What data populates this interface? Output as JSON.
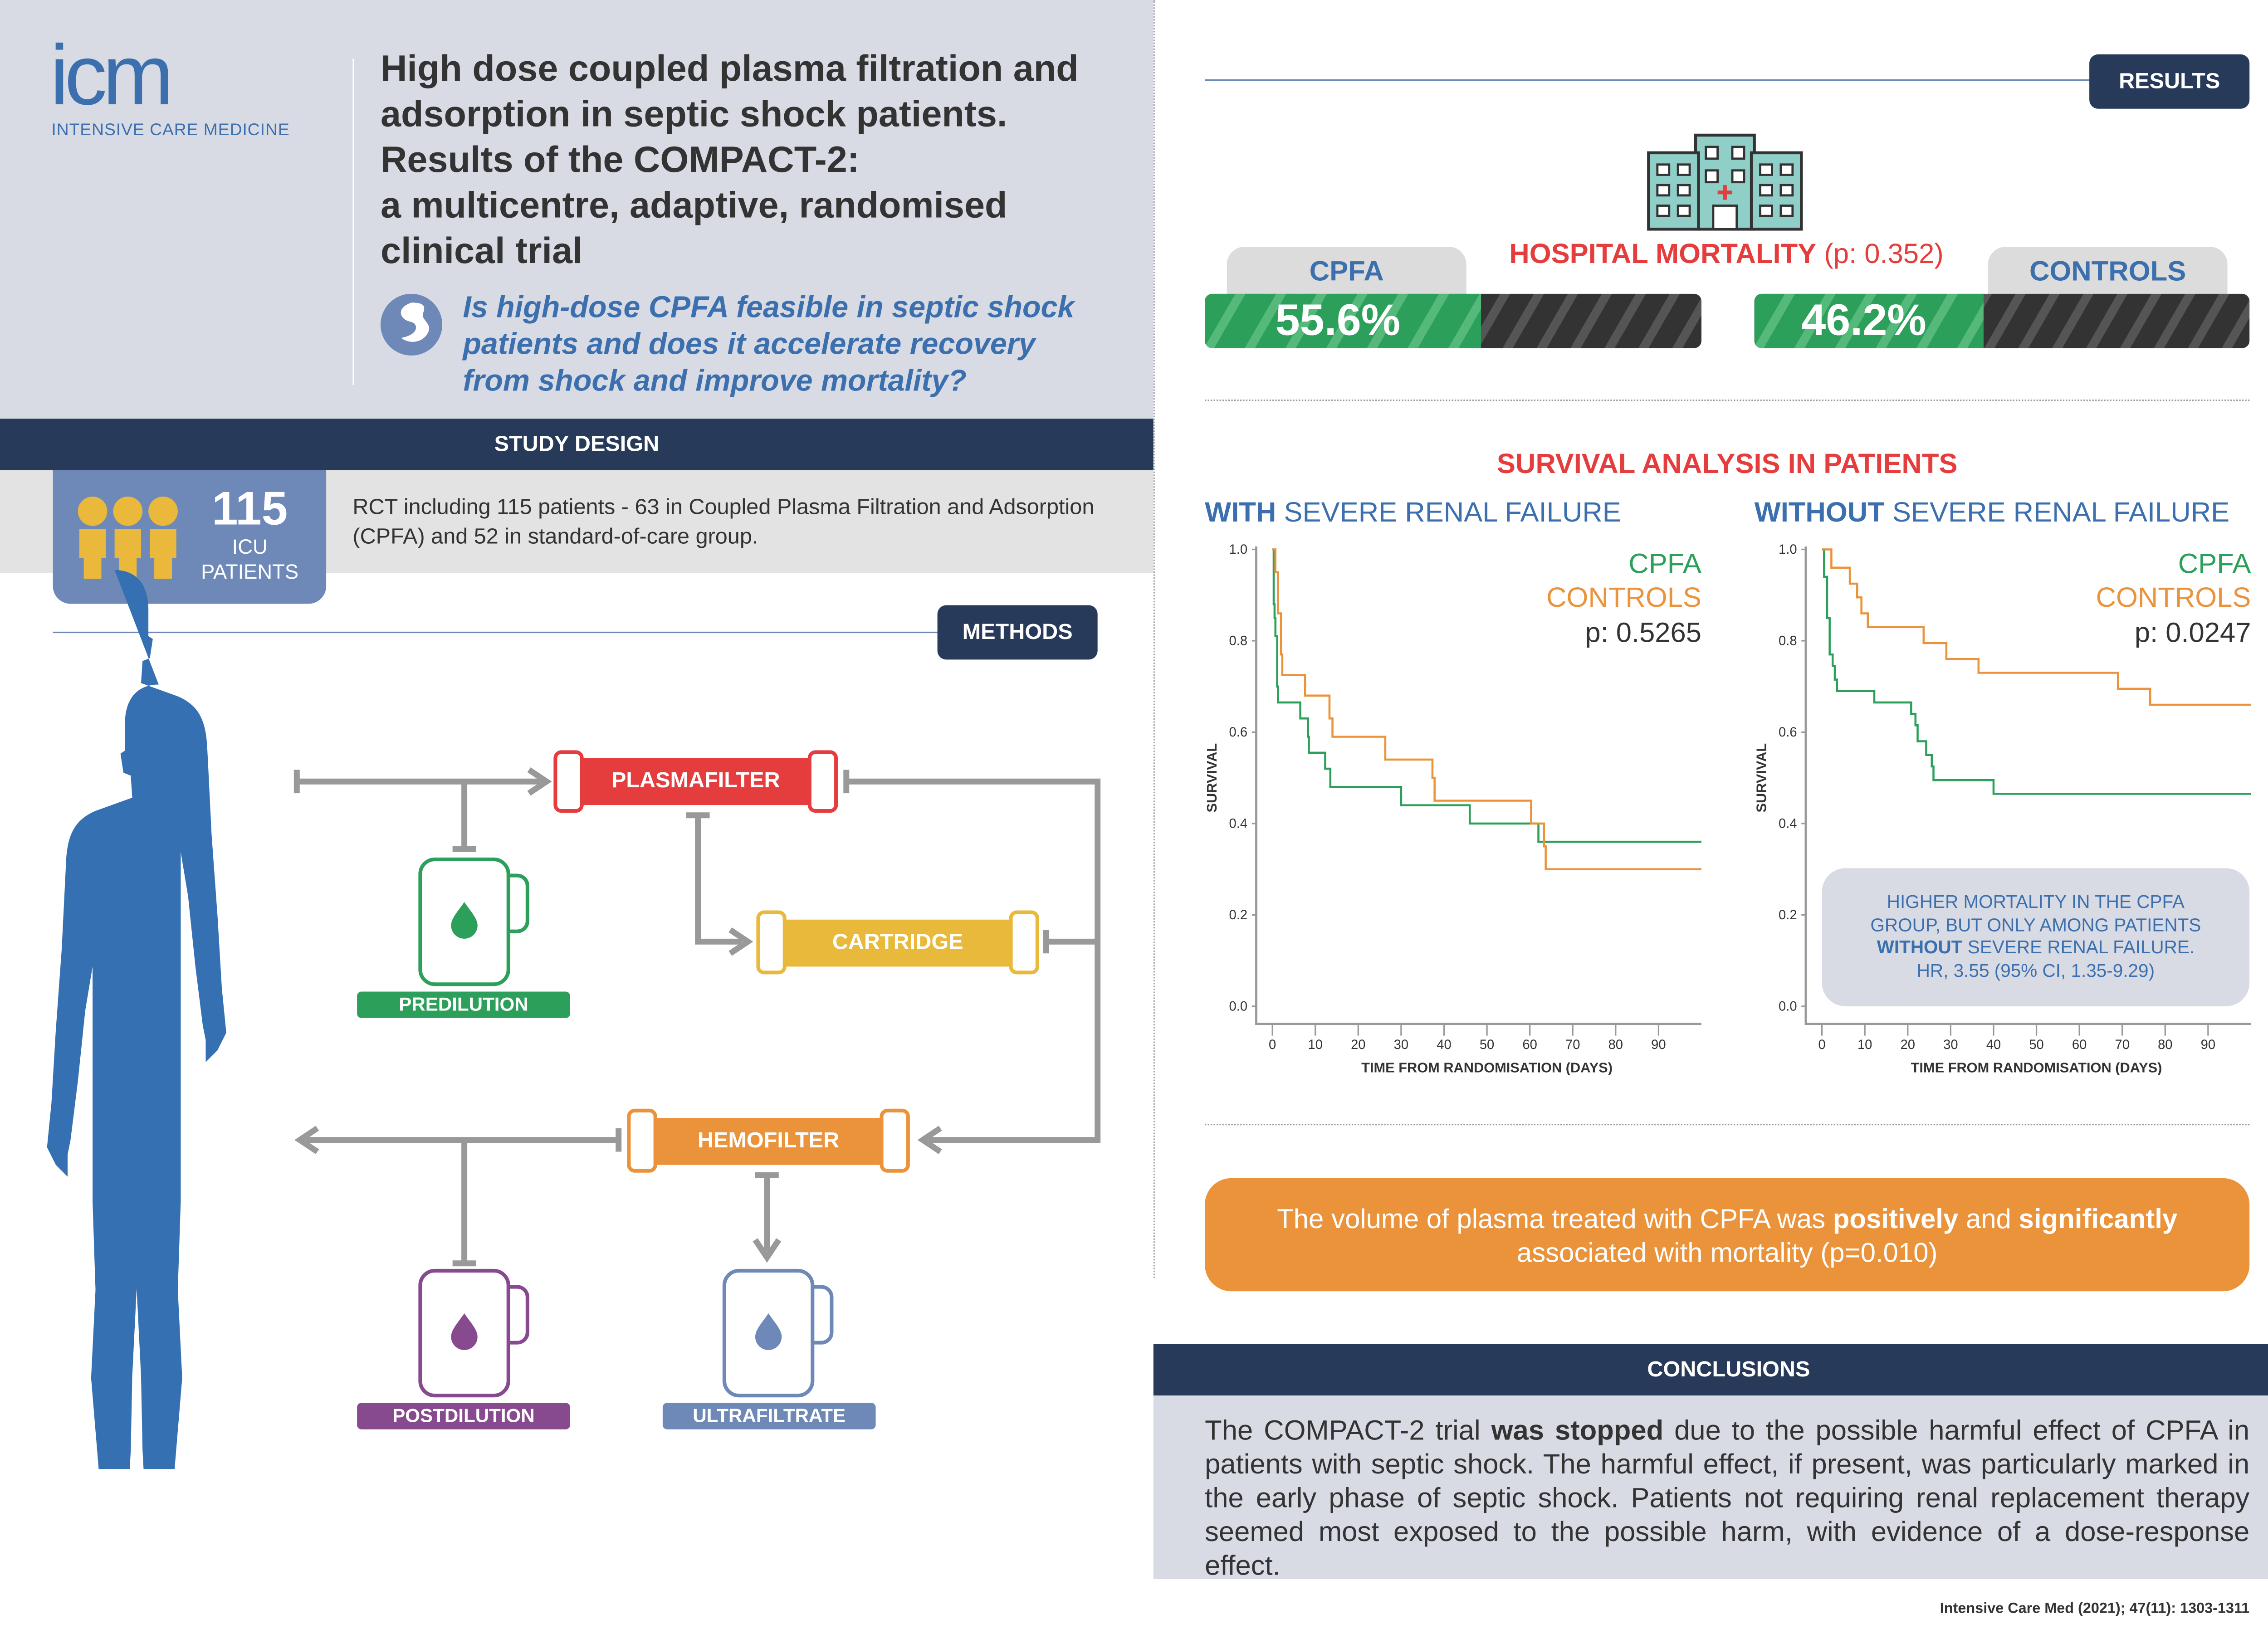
{
  "header": {
    "logo_mark": "icm",
    "logo_text": "INTENSIVE CARE MEDICINE",
    "title_lines": [
      "High dose coupled plasma filtration and",
      "adsorption in septic shock patients.",
      "Results of the COMPACT-2:",
      "a multicentre, adaptive, randomised",
      "clinical trial"
    ],
    "question_lines": [
      "Is high-dose CPFA feasible in septic shock",
      "patients and does it accelerate recovery",
      "from shock and improve mortality?"
    ]
  },
  "study_design": {
    "heading": "STUDY DESIGN",
    "patients_count": "115",
    "patients_label_1": "ICU",
    "patients_label_2": "PATIENTS",
    "description_1": "RCT including 115 patients - 63 in Coupled Plasma Filtration and Adsorption",
    "description_2": "(CPFA) and 52 in standard-of-care group."
  },
  "methods": {
    "heading": "METHODS",
    "plasmafilter": "PLASMAFILTER",
    "cartridge": "CARTRIDGE",
    "hemofilter": "HEMOFILTER",
    "predilution": "PREDILUTION",
    "postdilution": "POSTDILUTION",
    "ultrafiltrate": "ULTRAFILTRATE"
  },
  "results": {
    "heading": "RESULTS",
    "mortality_title": "HOSPITAL MORTALITY",
    "mortality_p": "(p: 0.352)",
    "cpfa_label": "CPFA",
    "cpfa_value": "55.6%",
    "cpfa_percent": 55.6,
    "controls_label": "CONTROLS",
    "controls_value": "46.2%",
    "controls_percent": 46.2,
    "survival_title": "SURVIVAL ANALYSIS IN PATIENTS",
    "with_bold": "WITH",
    "without_bold": "WITHOUT",
    "renal_suffix": " SEVERE RENAL FAILURE",
    "note_line1": "HIGHER MORTALITY IN THE CPFA",
    "note_line2": "GROUP, BUT ONLY AMONG PATIENTS",
    "note_bold": "WITHOUT",
    "note_line3": " SEVERE RENAL FAILURE.",
    "note_line4": "HR, 3.55 (95% CI, 1.35-9.29)",
    "plasma_pre": "The volume of plasma treated with CPFA was ",
    "plasma_b1": "positively",
    "plasma_mid": " and ",
    "plasma_b2": "significantly",
    "plasma_line2": "associated with mortality (p=0.010)"
  },
  "conclusions": {
    "heading": "CONCLUSIONS",
    "pre": "The COMPACT-2 trial ",
    "bold": "was stopped",
    "post": " due to the possible harmful effect of CPFA in patients with septic shock. The harmful effect, if present, was particularly marked in the early phase of septic shock. Patients not requiring renal replacement therapy seemed most exposed to the possible harm, with evidence of a dose-response effect."
  },
  "citation": "Intensive Care Med (2021); 47(11): 1303-1311",
  "colors": {
    "navy": "#283a5a",
    "blue": "#3b6fae",
    "green": "#2ca05a",
    "orange": "#eb933a",
    "red": "#e53d3e",
    "yellow": "#e8b93a",
    "purple": "#874a8f"
  },
  "chart_data": [
    {
      "type": "line",
      "title": "WITH SEVERE RENAL FAILURE",
      "xlabel": "TIME FROM RANDOMISATION (DAYS)",
      "ylabel": "SURVIVAL",
      "xlim": [
        0,
        100
      ],
      "ylim": [
        0,
        1
      ],
      "xticks": [
        "0",
        "10",
        "20",
        "30",
        "40",
        "50",
        "60",
        "70",
        "80",
        "90"
      ],
      "yticks": [
        "0.0",
        "0.2",
        "0.4",
        "0.6",
        "0.8",
        "1.0"
      ],
      "legend": [
        "CPFA",
        "CONTROLS"
      ],
      "p_value": "p: 0.5265",
      "series": [
        {
          "name": "CPFA",
          "steps": [
            [
              0,
              1.0
            ],
            [
              0.3,
              0.88
            ],
            [
              0.5,
              0.85
            ],
            [
              0.7,
              0.81
            ],
            [
              1.1,
              0.7
            ],
            [
              1.3,
              0.665
            ],
            [
              6.5,
              0.63
            ],
            [
              8.3,
              0.59
            ],
            [
              8.5,
              0.555
            ],
            [
              12.3,
              0.52
            ],
            [
              13.5,
              0.48
            ],
            [
              30,
              0.44
            ],
            [
              46,
              0.4
            ],
            [
              62,
              0.36
            ],
            [
              100,
              0.36
            ]
          ]
        },
        {
          "name": "CONTROLS",
          "steps": [
            [
              0,
              1.0
            ],
            [
              0.7,
              0.95
            ],
            [
              1.3,
              0.86
            ],
            [
              2,
              0.77
            ],
            [
              2.3,
              0.725
            ],
            [
              7.6,
              0.68
            ],
            [
              13.3,
              0.63
            ],
            [
              14,
              0.59
            ],
            [
              26.3,
              0.54
            ],
            [
              37.3,
              0.5
            ],
            [
              37.8,
              0.45
            ],
            [
              60.3,
              0.4
            ],
            [
              63.3,
              0.35
            ],
            [
              63.7,
              0.3
            ],
            [
              100,
              0.3
            ]
          ]
        }
      ]
    },
    {
      "type": "line",
      "title": "WITHOUT SEVERE RENAL FAILURE",
      "xlabel": "TIME FROM RANDOMISATION (DAYS)",
      "ylabel": "SURVIVAL",
      "xlim": [
        0,
        100
      ],
      "ylim": [
        0,
        1
      ],
      "xticks": [
        "0",
        "10",
        "20",
        "30",
        "40",
        "50",
        "60",
        "70",
        "80",
        "90"
      ],
      "yticks": [
        "0.0",
        "0.2",
        "0.4",
        "0.6",
        "0.8",
        "1.0"
      ],
      "legend": [
        "CPFA",
        "CONTROLS"
      ],
      "p_value": "p: 0.0247",
      "series": [
        {
          "name": "CPFA",
          "steps": [
            [
              0,
              1.0
            ],
            [
              0.5,
              0.94
            ],
            [
              1.2,
              0.85
            ],
            [
              1.8,
              0.77
            ],
            [
              2.5,
              0.745
            ],
            [
              3,
              0.715
            ],
            [
              3.5,
              0.69
            ],
            [
              12.2,
              0.665
            ],
            [
              20.8,
              0.64
            ],
            [
              21.8,
              0.615
            ],
            [
              22.3,
              0.58
            ],
            [
              24.3,
              0.55
            ],
            [
              25.6,
              0.525
            ],
            [
              26,
              0.495
            ],
            [
              40,
              0.465
            ],
            [
              100,
              0.465
            ]
          ]
        },
        {
          "name": "CONTROLS",
          "steps": [
            [
              0,
              1.0
            ],
            [
              2.2,
              0.96
            ],
            [
              6.5,
              0.925
            ],
            [
              8.2,
              0.895
            ],
            [
              9.2,
              0.86
            ],
            [
              10.7,
              0.83
            ],
            [
              23.7,
              0.795
            ],
            [
              29,
              0.76
            ],
            [
              36.5,
              0.73
            ],
            [
              69,
              0.695
            ],
            [
              76.5,
              0.66
            ],
            [
              100,
              0.66
            ]
          ]
        }
      ]
    }
  ]
}
